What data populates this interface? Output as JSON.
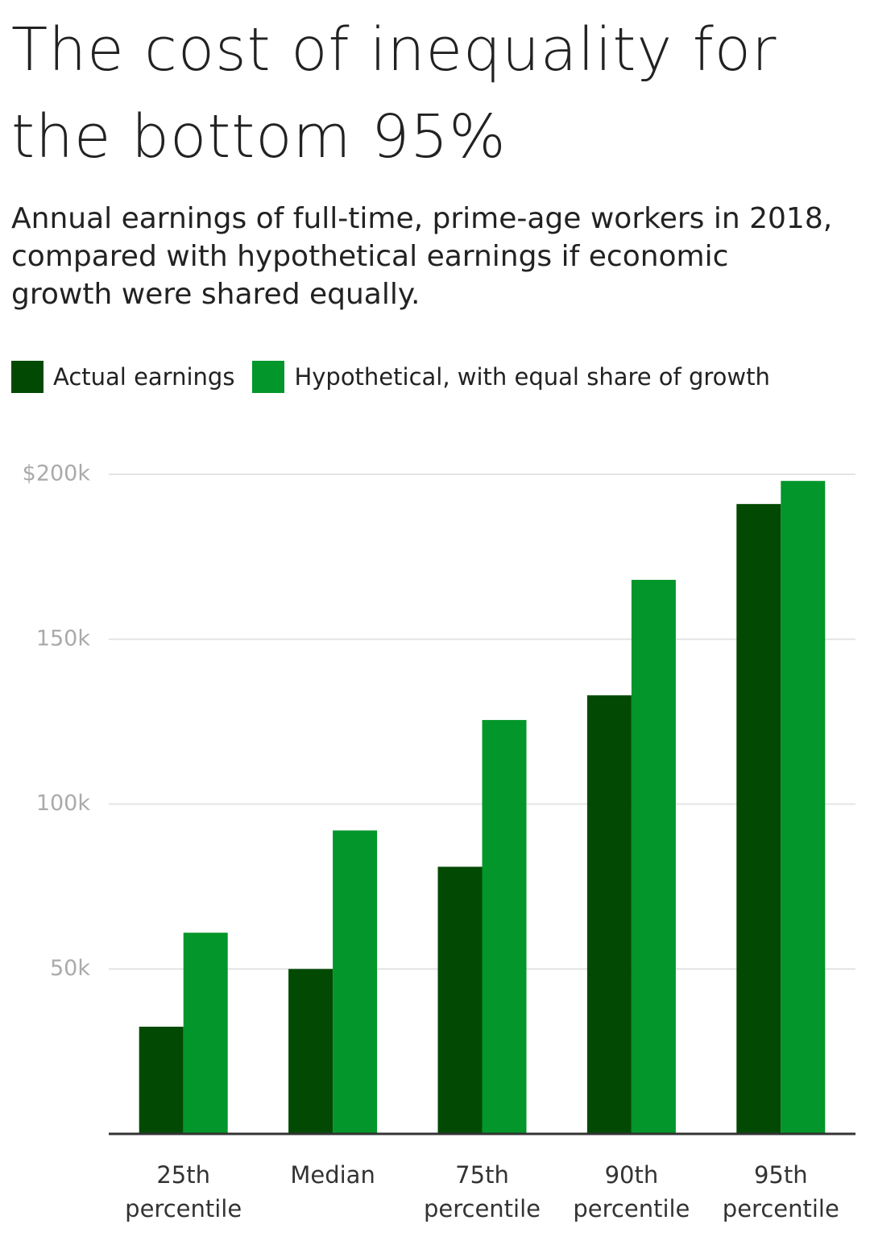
{
  "chart_data": {
    "type": "bar",
    "title": "The cost of inequality for the bottom 95%",
    "subtitle": "Annual earnings of full-time, prime-age workers in 2018, compared with hypothetical earnings if economic growth were shared equally.",
    "categories": [
      "25th percentile",
      "Median",
      "75th percentile",
      "90th percentile",
      "95th percentile"
    ],
    "series": [
      {
        "name": "Actual earnings",
        "color": "#024a03",
        "values": [
          32500,
          50000,
          81000,
          133000,
          191000
        ]
      },
      {
        "name": "Hypothetical, with equal share of growth",
        "color": "#03962a",
        "values": [
          61000,
          92000,
          125500,
          168000,
          198000
        ]
      }
    ],
    "ylim": [
      0,
      200000
    ],
    "yticks": [
      {
        "value": 50000,
        "label": "50k"
      },
      {
        "value": 100000,
        "label": "100k"
      },
      {
        "value": 150000,
        "label": "150k"
      },
      {
        "value": 200000,
        "label": "$200k"
      }
    ],
    "grid": true
  }
}
